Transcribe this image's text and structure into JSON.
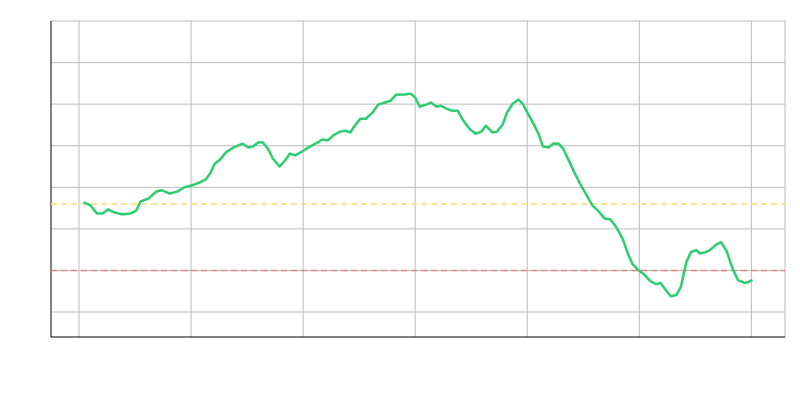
{
  "chart_data": {
    "type": "line",
    "x": [
      0.04,
      0.1,
      0.16,
      0.21,
      0.26,
      0.31,
      0.38,
      0.46,
      0.51,
      0.55,
      0.62,
      0.69,
      0.74,
      0.81,
      0.88,
      0.94,
      1.01,
      1.08,
      1.13,
      1.17,
      1.21,
      1.26,
      1.31,
      1.38,
      1.46,
      1.51,
      1.55,
      1.6,
      1.64,
      1.69,
      1.73,
      1.79,
      1.84,
      1.88,
      1.93,
      1.99,
      2.06,
      2.13,
      2.17,
      2.22,
      2.27,
      2.33,
      2.38,
      2.42,
      2.46,
      2.51,
      2.56,
      2.62,
      2.67,
      2.73,
      2.78,
      2.83,
      2.89,
      2.96,
      3.0,
      3.04,
      3.1,
      3.14,
      3.19,
      3.23,
      3.28,
      3.33,
      3.38,
      3.43,
      3.49,
      3.54,
      3.59,
      3.63,
      3.69,
      3.73,
      3.78,
      3.82,
      3.87,
      3.92,
      3.96,
      4.01,
      4.05,
      4.1,
      4.14,
      4.19,
      4.23,
      4.28,
      4.32,
      4.37,
      4.42,
      4.47,
      4.53,
      4.58,
      4.63,
      4.69,
      4.74,
      4.79,
      4.85,
      4.9,
      4.94,
      4.99,
      5.04,
      5.1,
      5.15,
      5.19,
      5.23,
      5.28,
      5.33,
      5.37,
      5.42,
      5.46,
      5.51,
      5.54,
      5.59,
      5.63,
      5.69,
      5.73,
      5.78,
      5.83,
      5.88,
      5.94,
      5.97,
      6.01
    ],
    "series": [
      {
        "color": "#2ecc71",
        "values": [
          3.64,
          3.57,
          3.37,
          3.37,
          3.47,
          3.4,
          3.35,
          3.37,
          3.44,
          3.66,
          3.73,
          3.9,
          3.93,
          3.85,
          3.9,
          4.0,
          4.05,
          4.12,
          4.19,
          4.33,
          4.57,
          4.67,
          4.84,
          4.96,
          5.05,
          4.96,
          4.98,
          5.08,
          5.08,
          4.91,
          4.69,
          4.5,
          4.65,
          4.81,
          4.77,
          4.86,
          4.98,
          5.08,
          5.15,
          5.13,
          5.25,
          5.34,
          5.36,
          5.32,
          5.48,
          5.65,
          5.65,
          5.8,
          5.99,
          6.04,
          6.08,
          6.23,
          6.23,
          6.25,
          6.16,
          5.94,
          5.99,
          6.04,
          5.94,
          5.96,
          5.89,
          5.84,
          5.84,
          5.6,
          5.39,
          5.29,
          5.34,
          5.48,
          5.32,
          5.34,
          5.51,
          5.8,
          6.01,
          6.11,
          6.01,
          5.75,
          5.56,
          5.29,
          4.98,
          4.96,
          5.05,
          5.05,
          4.93,
          4.65,
          4.36,
          4.09,
          3.81,
          3.57,
          3.44,
          3.25,
          3.23,
          3.06,
          2.77,
          2.39,
          2.15,
          2.01,
          1.91,
          1.74,
          1.67,
          1.7,
          1.55,
          1.38,
          1.41,
          1.6,
          2.2,
          2.44,
          2.49,
          2.41,
          2.44,
          2.49,
          2.63,
          2.68,
          2.46,
          2.06,
          1.77,
          1.7,
          1.72,
          1.77
        ]
      }
    ],
    "reference_lines": [
      {
        "value": 3.6,
        "color": "#f0e070"
      },
      {
        "value": 2.0,
        "color": "#e87f7f"
      }
    ],
    "xlim": [
      -0.25,
      6.3
    ],
    "xticks": [
      0,
      1,
      2,
      3,
      4,
      5,
      6
    ],
    "ylim": [
      0.4,
      8.0
    ],
    "yticks": [
      1,
      2,
      3,
      4,
      5,
      6,
      7
    ],
    "grid": true
  }
}
